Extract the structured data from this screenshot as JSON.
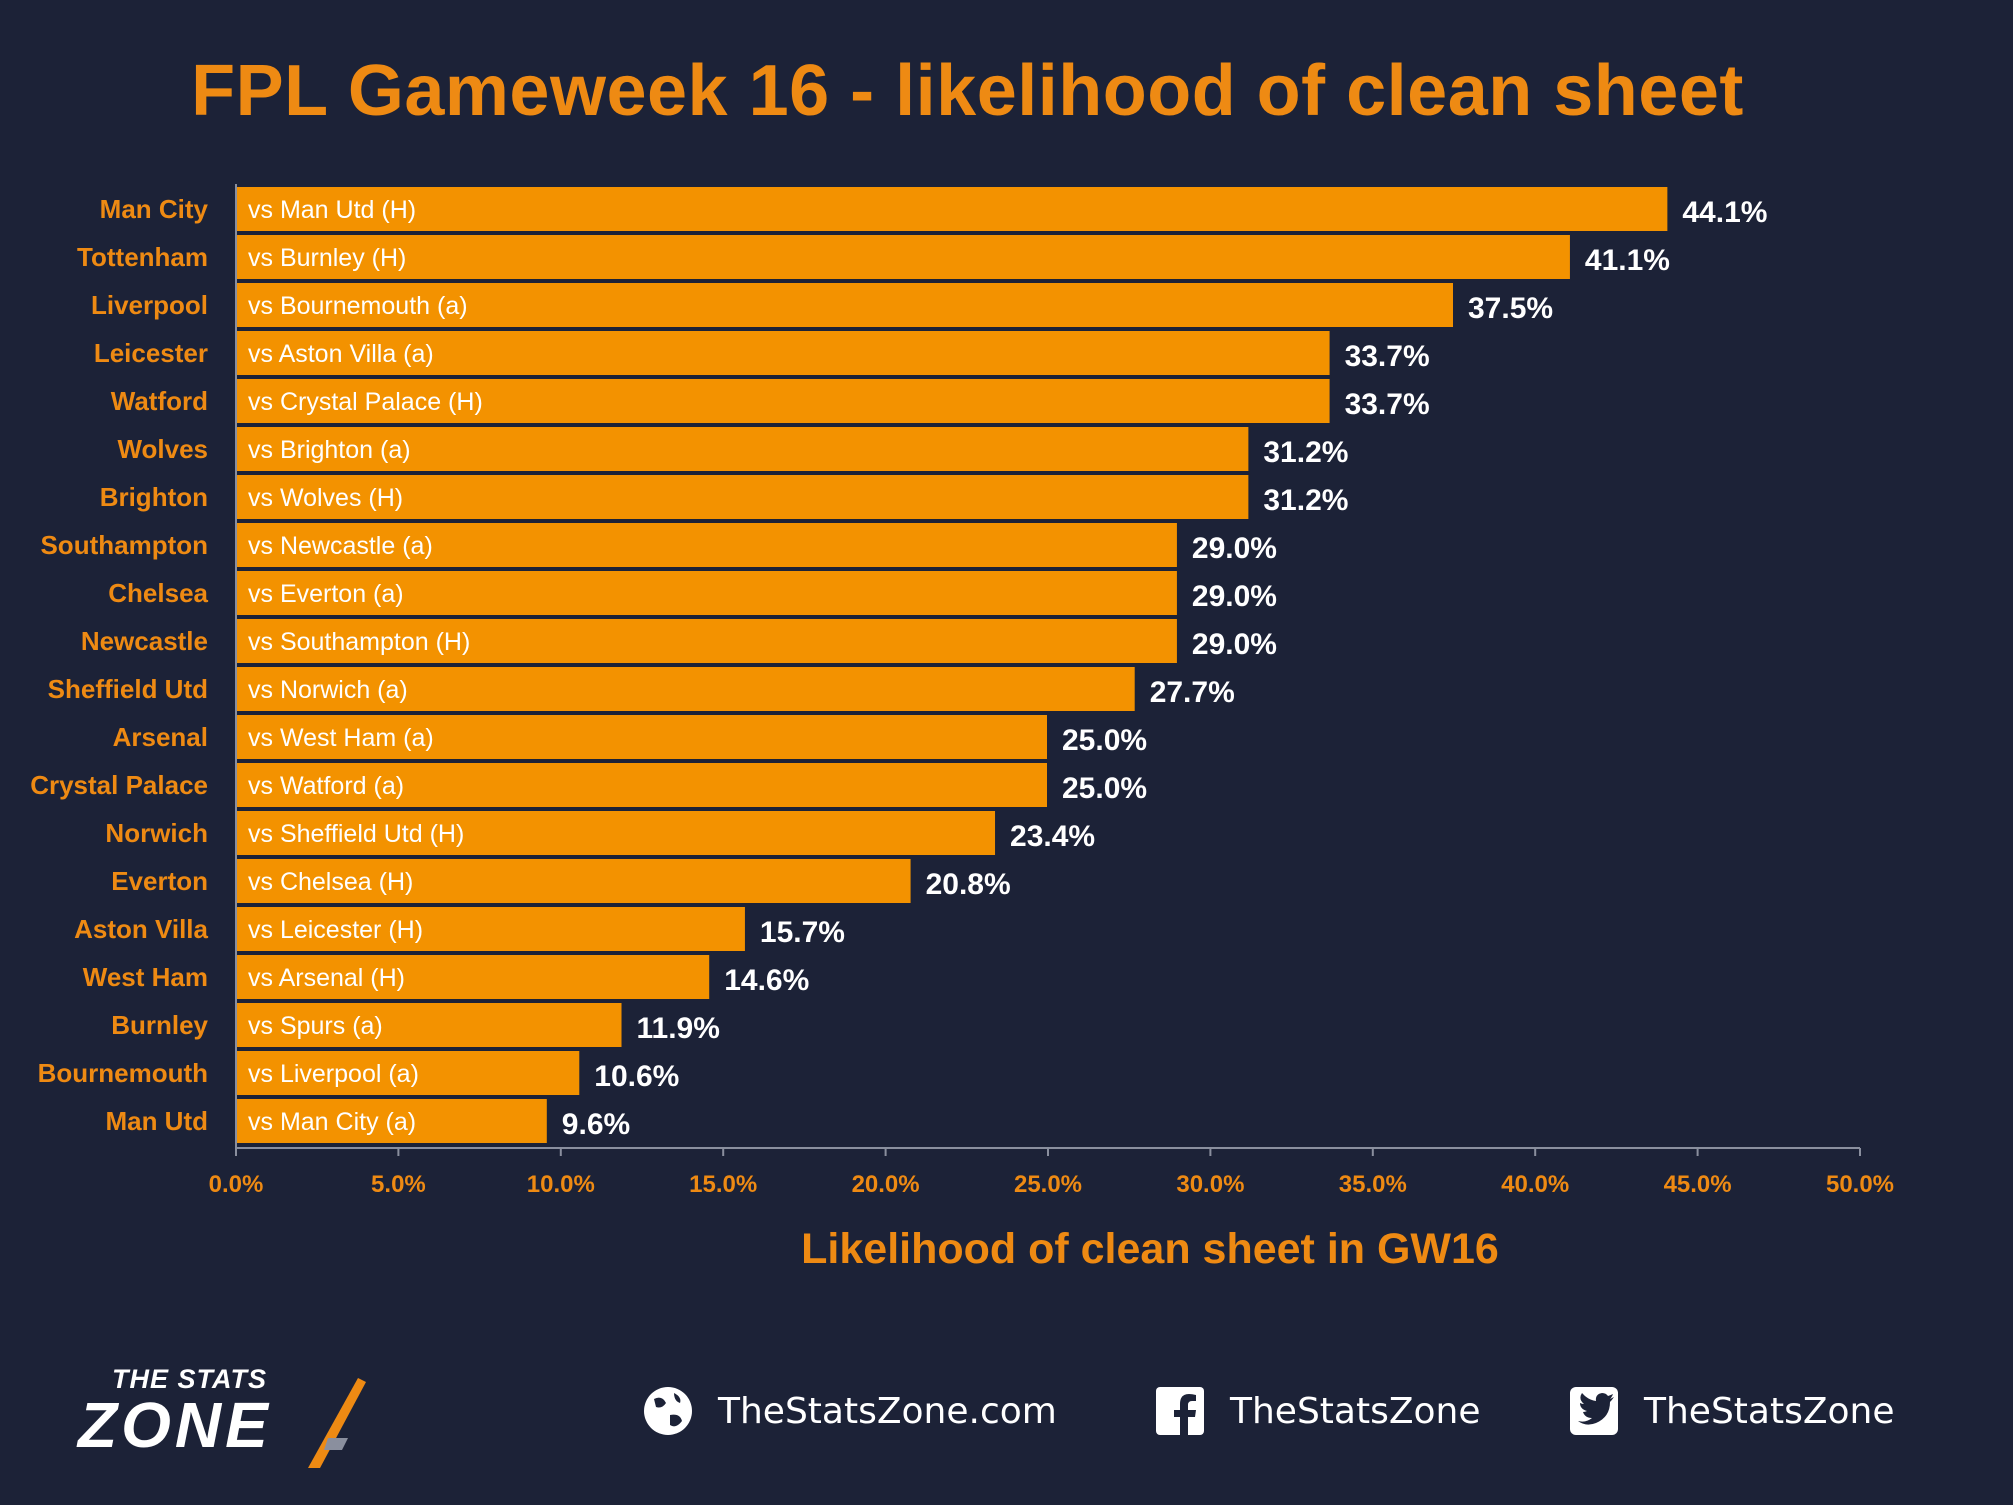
{
  "chart_data": {
    "type": "bar",
    "orientation": "horizontal",
    "title": "FPL Gameweek 16 - likelihood of clean sheet",
    "xlabel": "Likelihood of clean sheet in GW16",
    "ylabel": "",
    "xlim": [
      0,
      50
    ],
    "xticks": [
      "0.0%",
      "5.0%",
      "10.0%",
      "15.0%",
      "20.0%",
      "25.0%",
      "30.0%",
      "35.0%",
      "40.0%",
      "45.0%",
      "50.0%"
    ],
    "grid": false,
    "bars": [
      {
        "team": "Man City",
        "fixture": "vs Man Utd (H)",
        "value": 44.1,
        "label": "44.1%"
      },
      {
        "team": "Tottenham",
        "fixture": "vs Burnley (H)",
        "value": 41.1,
        "label": "41.1%"
      },
      {
        "team": "Liverpool",
        "fixture": "vs Bournemouth (a)",
        "value": 37.5,
        "label": "37.5%"
      },
      {
        "team": "Leicester",
        "fixture": "vs Aston Villa (a)",
        "value": 33.7,
        "label": "33.7%"
      },
      {
        "team": "Watford",
        "fixture": "vs Crystal Palace (H)",
        "value": 33.7,
        "label": "33.7%"
      },
      {
        "team": "Wolves",
        "fixture": "vs Brighton (a)",
        "value": 31.2,
        "label": "31.2%"
      },
      {
        "team": "Brighton",
        "fixture": "vs Wolves (H)",
        "value": 31.2,
        "label": "31.2%"
      },
      {
        "team": "Southampton",
        "fixture": "vs Newcastle (a)",
        "value": 29.0,
        "label": "29.0%"
      },
      {
        "team": "Chelsea",
        "fixture": "vs Everton (a)",
        "value": 29.0,
        "label": "29.0%"
      },
      {
        "team": "Newcastle",
        "fixture": "vs Southampton (H)",
        "value": 29.0,
        "label": "29.0%"
      },
      {
        "team": "Sheffield Utd",
        "fixture": "vs Norwich (a)",
        "value": 27.7,
        "label": "27.7%"
      },
      {
        "team": "Arsenal",
        "fixture": "vs West Ham (a)",
        "value": 25.0,
        "label": "25.0%"
      },
      {
        "team": "Crystal Palace",
        "fixture": "vs Watford (a)",
        "value": 25.0,
        "label": "25.0%"
      },
      {
        "team": "Norwich",
        "fixture": "vs Sheffield Utd (H)",
        "value": 23.4,
        "label": "23.4%"
      },
      {
        "team": "Everton",
        "fixture": "vs Chelsea (H)",
        "value": 20.8,
        "label": "20.8%"
      },
      {
        "team": "Aston Villa",
        "fixture": "vs Leicester (H)",
        "value": 15.7,
        "label": "15.7%"
      },
      {
        "team": "West Ham",
        "fixture": "vs Arsenal (H)",
        "value": 14.6,
        "label": "14.6%"
      },
      {
        "team": "Burnley",
        "fixture": "vs Spurs (a)",
        "value": 11.9,
        "label": "11.9%"
      },
      {
        "team": "Bournemouth",
        "fixture": "vs Liverpool (a)",
        "value": 10.6,
        "label": "10.6%"
      },
      {
        "team": "Man Utd",
        "fixture": "vs Man City (a)",
        "value": 9.6,
        "label": "9.6%"
      }
    ],
    "colors": {
      "bar": "#f39200",
      "label": "#ee8a13",
      "value_text": "#ffffff",
      "background": "#1c2237"
    }
  },
  "branding": {
    "logo_top": "THE STATS",
    "logo_main": "ZONE",
    "website": "TheStatsZone.com",
    "facebook": "TheStatsZone",
    "twitter": "TheStatsZone",
    "icons": [
      "globe-icon",
      "facebook-icon",
      "twitter-icon"
    ]
  }
}
